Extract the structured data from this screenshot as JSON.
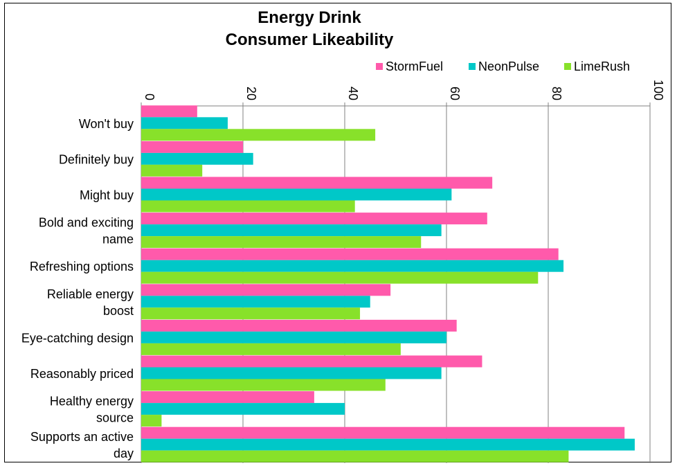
{
  "chart_data": {
    "type": "bar",
    "orientation": "horizontal",
    "title": [
      "Energy Drink",
      "Consumer Likeability"
    ],
    "categories": [
      [
        "Won't buy"
      ],
      [
        "Definitely buy"
      ],
      [
        "Might buy"
      ],
      [
        "Bold and exciting",
        "name"
      ],
      [
        "Refreshing options"
      ],
      [
        "Reliable energy",
        "boost"
      ],
      [
        "Eye-catching design"
      ],
      [
        "Reasonably priced"
      ],
      [
        "Healthy energy",
        "source"
      ],
      [
        "Supports an active",
        "day"
      ]
    ],
    "series": [
      {
        "name": "StormFuel",
        "color": "#ff5aab",
        "values": [
          11,
          20,
          69,
          68,
          82,
          49,
          62,
          67,
          34,
          95
        ]
      },
      {
        "name": "NeonPulse",
        "color": "#00c8c8",
        "values": [
          17,
          22,
          61,
          59,
          83,
          45,
          60,
          59,
          40,
          97
        ]
      },
      {
        "name": "LimeRush",
        "color": "#88e12a",
        "values": [
          46,
          12,
          42,
          55,
          78,
          43,
          51,
          48,
          4,
          84
        ]
      }
    ],
    "xlim": [
      0,
      100
    ],
    "xticks": [
      0,
      20,
      40,
      60,
      80,
      100
    ],
    "xlabel": "",
    "ylabel": "",
    "grid": true,
    "legend_position": "top-right"
  }
}
